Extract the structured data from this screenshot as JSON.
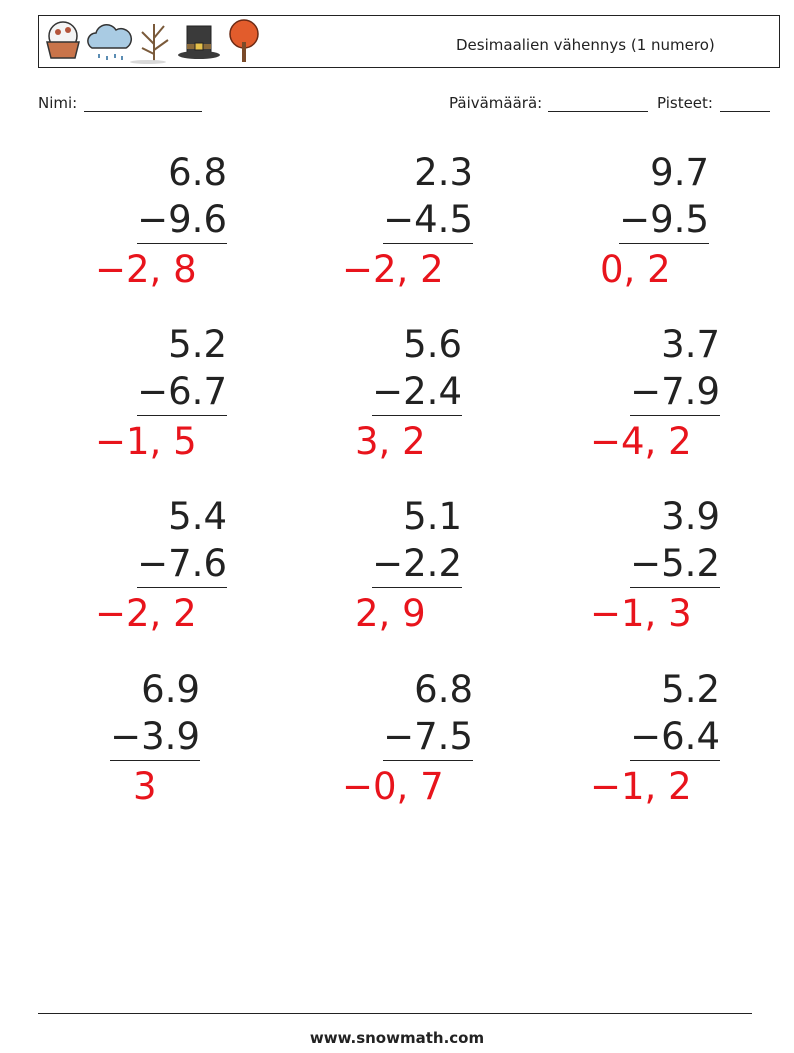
{
  "header": {
    "title": "Desimaalien vähennys (1 numero)"
  },
  "fields": {
    "name": "Nimi:",
    "date": "Päivämäärä:",
    "score": "Pisteet:"
  },
  "problems": [
    {
      "top": "6.8",
      "bottom": "−9.6",
      "answer": "−2, 8"
    },
    {
      "top": "2.3",
      "bottom": "−4.5",
      "answer": "−2, 2"
    },
    {
      "top": "9.7",
      "bottom": "−9.5",
      "answer": "0, 2"
    },
    {
      "top": "5.2",
      "bottom": "−6.7",
      "answer": "−1, 5"
    },
    {
      "top": "5.6",
      "bottom": "−2.4",
      "answer": "3, 2"
    },
    {
      "top": "3.7",
      "bottom": "−7.9",
      "answer": "−4, 2"
    },
    {
      "top": "5.4",
      "bottom": "−7.6",
      "answer": "−2, 2"
    },
    {
      "top": "5.1",
      "bottom": "−2.2",
      "answer": "2, 9"
    },
    {
      "top": "3.9",
      "bottom": "−5.2",
      "answer": "−1, 3"
    },
    {
      "top": "6.9",
      "bottom": "−3.9",
      "answer": "3"
    },
    {
      "top": "6.8",
      "bottom": "−7.5",
      "answer": "−0, 7"
    },
    {
      "top": "5.2",
      "bottom": "−6.4",
      "answer": "−1, 2"
    }
  ],
  "footer": {
    "url": "www.snowmath.com"
  }
}
